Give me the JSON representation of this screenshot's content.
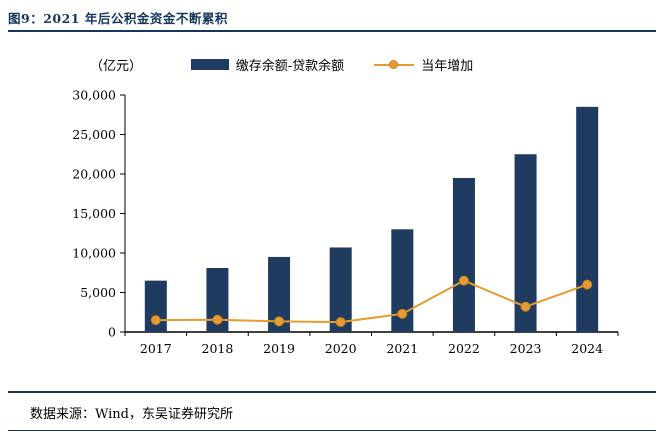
{
  "figure": {
    "title": "图9：2021 年后公积金资金不断累积",
    "source": "数据来源：Wind，东吴证券研究所"
  },
  "chart_data": {
    "type": "bar+line",
    "title": "2021 年后公积金资金不断累积",
    "unit_label": "（亿元）",
    "categories": [
      "2017",
      "2018",
      "2019",
      "2020",
      "2021",
      "2022",
      "2023",
      "2024"
    ],
    "series": [
      {
        "name": "缴存余额-贷款余额",
        "type": "bar",
        "color": "#1f3b5f",
        "values": [
          6500,
          8100,
          9500,
          10700,
          13000,
          19500,
          22500,
          28500
        ]
      },
      {
        "name": "当年增加",
        "type": "line",
        "color": "#e79b30",
        "marker_stroke": "#c58523",
        "values": [
          1500,
          1550,
          1350,
          1250,
          2300,
          6500,
          3200,
          6000
        ]
      }
    ],
    "ylim": [
      0,
      30000
    ],
    "ytick_step": 5000,
    "ytick_labels": [
      "0",
      "5,000",
      "10,000",
      "15,000",
      "20,000",
      "25,000",
      "30,000"
    ],
    "grid": false,
    "legend_position": "top"
  }
}
